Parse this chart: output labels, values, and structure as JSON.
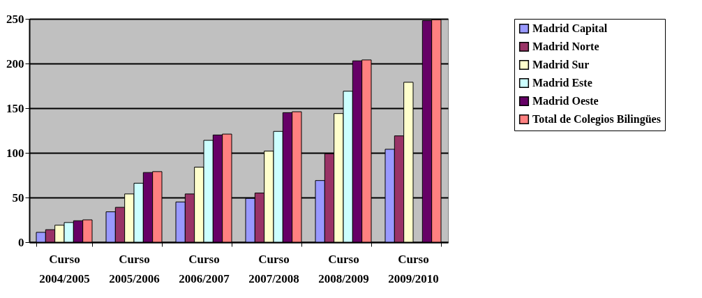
{
  "chart_data": {
    "type": "bar",
    "categories": [
      "Curso 2004/2005",
      "Curso 2005/2006",
      "Curso 2006/2007",
      "Curso 2007/2008",
      "Curso 2008/2009",
      "Curso 2009/2010"
    ],
    "series": [
      {
        "name": "Madrid Capital",
        "color": "#9999ff",
        "values": [
          11,
          34,
          45,
          49,
          69,
          104
        ]
      },
      {
        "name": "Madrid Norte",
        "color": "#993366",
        "values": [
          14,
          39,
          54,
          55,
          99,
          119
        ]
      },
      {
        "name": "Madrid Sur",
        "color": "#ffffcc",
        "values": [
          19,
          54,
          84,
          102,
          144,
          179
        ]
      },
      {
        "name": "Madrid Este",
        "color": "#ccffff",
        "values": [
          22,
          66,
          114,
          124,
          169,
          null
        ]
      },
      {
        "name": "Madrid Oeste",
        "color": "#660066",
        "values": [
          24,
          78,
          120,
          145,
          203,
          248
        ]
      },
      {
        "name": "Total de Colegios Bilingües",
        "color": "#ff8080",
        "values": [
          25,
          79,
          121,
          146,
          204,
          249
        ]
      }
    ],
    "ylim": [
      0,
      250
    ],
    "yticks": [
      0,
      50,
      100,
      150,
      200,
      250
    ],
    "grid": "y",
    "legend": "right"
  }
}
